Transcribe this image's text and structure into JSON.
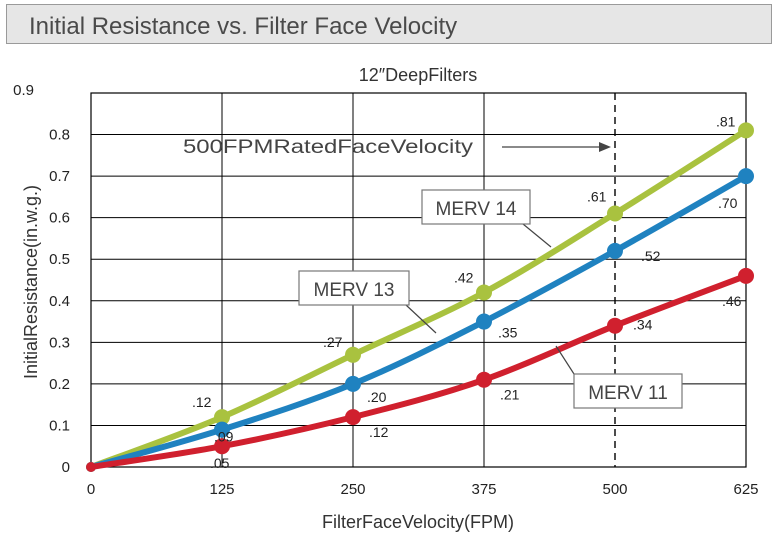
{
  "header": {
    "title": "Initial Resistance vs. Filter Face Velocity"
  },
  "chart_data": {
    "type": "line",
    "title": "12″DeepFilters",
    "xlabel": "FilterFaceVelocity(FPM)",
    "ylabel": "InitialResistance(in.w.g.)",
    "x": [
      0,
      125,
      250,
      375,
      500,
      625
    ],
    "x_tick_labels": [
      "0",
      "125",
      "250",
      "375",
      "500",
      "625"
    ],
    "y_tick_labels": [
      "0",
      "0.1",
      "0.2",
      "0.3",
      "0.4",
      "0.5",
      "0.6",
      "0.7",
      "0.8",
      "0.9"
    ],
    "xlim": [
      0,
      625
    ],
    "ylim": [
      0,
      0.9
    ],
    "grid": true,
    "series": [
      {
        "name": "MERV 14",
        "color": "#a9c23f",
        "values": [
          0,
          0.12,
          0.27,
          0.42,
          0.61,
          0.81
        ],
        "labels": [
          "",
          ".12",
          ".27",
          ".42",
          ".61",
          ".81"
        ]
      },
      {
        "name": "MERV 13",
        "color": "#1f82c0",
        "values": [
          0,
          0.09,
          0.2,
          0.35,
          0.52,
          0.7
        ],
        "labels": [
          "",
          ".09",
          ".20",
          ".35",
          ".52",
          ".70"
        ]
      },
      {
        "name": "MERV 11",
        "color": "#d0202e",
        "values": [
          0,
          0.05,
          0.12,
          0.21,
          0.34,
          0.46
        ],
        "labels": [
          "",
          ".05",
          ".12",
          ".21",
          ".34",
          ".46"
        ]
      }
    ],
    "annotations": {
      "rated_velocity_label": "500FPMRatedFaceVelocity",
      "rated_velocity_x": 500
    }
  }
}
